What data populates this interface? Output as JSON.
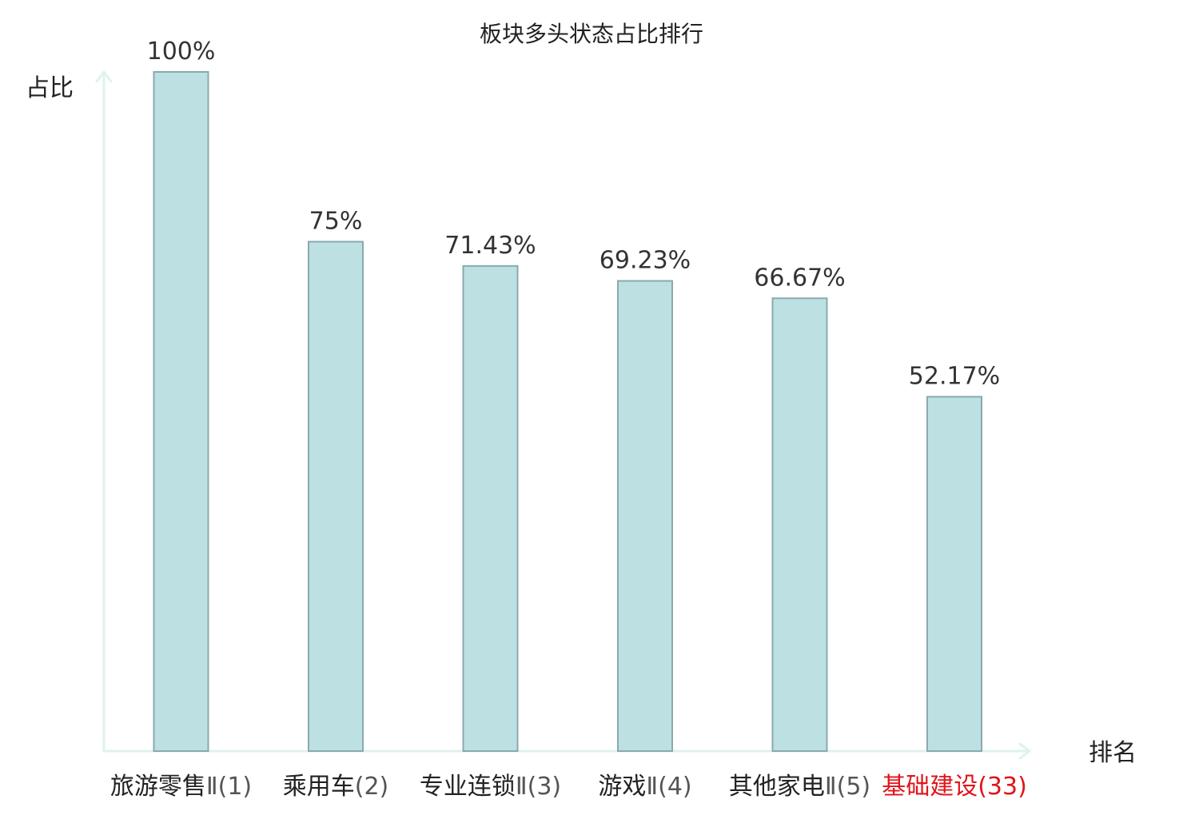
{
  "chart_data": {
    "type": "bar",
    "title": "板块多头状态占比排行",
    "ylabel": "占比",
    "xlabel": "排名",
    "ylim": [
      0,
      100
    ],
    "grid": false,
    "legend": "none",
    "categories": [
      {
        "name": "旅游零售",
        "suffix": "Ⅱ(1)",
        "value": 100,
        "value_label": "100%",
        "highlight": false
      },
      {
        "name": "乘用车",
        "suffix": "(2)",
        "value": 75,
        "value_label": "75%",
        "highlight": false
      },
      {
        "name": "专业连锁",
        "suffix": "Ⅱ(3)",
        "value": 71.43,
        "value_label": "71.43%",
        "highlight": false
      },
      {
        "name": "游戏",
        "suffix": "Ⅱ(4)",
        "value": 69.23,
        "value_label": "69.23%",
        "highlight": false
      },
      {
        "name": "其他家电",
        "suffix": "Ⅱ(5)",
        "value": 66.67,
        "value_label": "66.67%",
        "highlight": false
      },
      {
        "name": "基础建设",
        "suffix": "(33)",
        "value": 52.17,
        "value_label": "52.17%",
        "highlight": true
      }
    ]
  },
  "colors": {
    "bar_fill": "#bde0e3",
    "bar_stroke": "#8aa9ad",
    "axis": "#dff2f0",
    "text": "#222222",
    "value_text": "#333333",
    "suffix_text": "#555555",
    "highlight": "#e0141b"
  }
}
